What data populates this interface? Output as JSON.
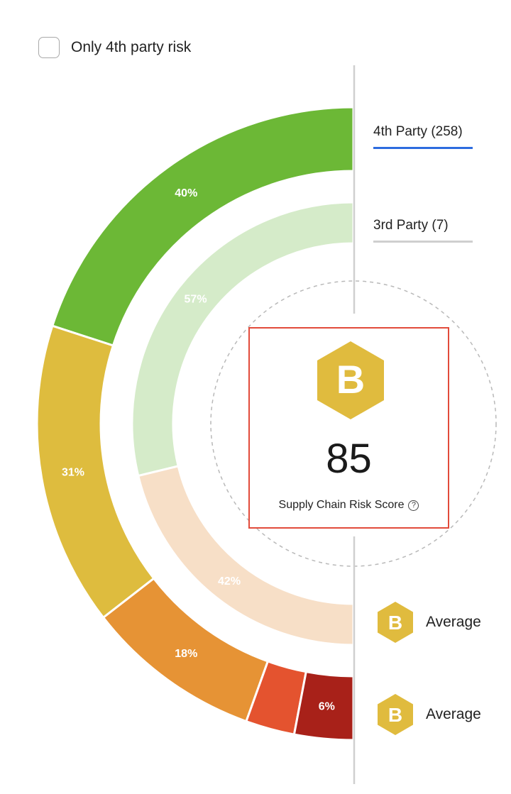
{
  "filter": {
    "checkbox_label": "Only 4th party risk",
    "checked": false
  },
  "tabs": [
    {
      "label": "4th Party (258)",
      "active": true
    },
    {
      "label": "3rd Party (7)",
      "active": false
    }
  ],
  "score": {
    "grade": "B",
    "value": "85",
    "caption": "Supply Chain Risk Score",
    "help_icon": "question-circle-icon"
  },
  "grades": [
    {
      "grade": "B",
      "label": "Average"
    },
    {
      "grade": "B",
      "label": "Average"
    }
  ],
  "colors": {
    "grade_b": "#e0bb3e",
    "active_tab": "#2d6cdf",
    "highlight": "#e24b3b"
  },
  "chart_data": {
    "type": "pie",
    "rings": [
      {
        "segments": [
          {
            "value": 40,
            "label": "40%",
            "color": "#6cb836",
            "label_color": "#ffffff"
          },
          {
            "value": 31,
            "label": "31%",
            "color": "#debc3e",
            "label_color": "#ffffff"
          },
          {
            "value": 18,
            "label": "18%",
            "color": "#e69335",
            "label_color": "#ffffff"
          },
          {
            "value": 5,
            "label": "",
            "color": "#e4532f",
            "label_color": "#ffffff"
          },
          {
            "value": 6,
            "label": "6%",
            "color": "#a82119",
            "label_color": "#ffffff"
          }
        ]
      },
      {
        "segments": [
          {
            "value": 57,
            "label": "57%",
            "color": "#d5ebc9",
            "label_color": "#ffffff"
          },
          {
            "value": 42,
            "label": "42%",
            "color": "#f7dfc7",
            "label_color": "#ffffff"
          }
        ]
      }
    ]
  }
}
